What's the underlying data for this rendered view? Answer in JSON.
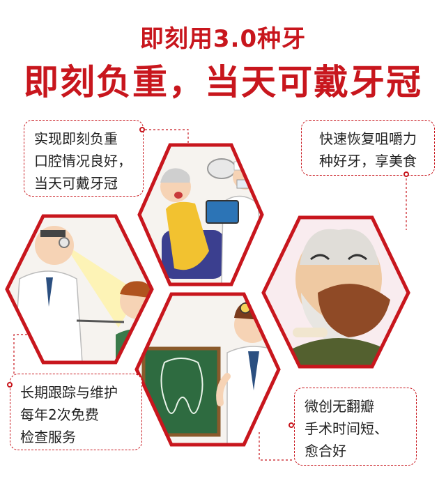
{
  "headline": {
    "line1": "即刻用3.0种牙",
    "line2": "即刻负重，当天可戴牙冠"
  },
  "callouts": {
    "top_left": [
      "实现即刻负重",
      "口腔情况良好，",
      "当天可戴牙冠"
    ],
    "top_right": [
      "快速恢复咀嚼力",
      "种好牙，享美食"
    ],
    "bottom_left": [
      "长期跟踪与维护",
      "每年2次免费",
      "检查服务"
    ],
    "bottom_right": [
      "微创无翻瓣",
      "手术时间短、",
      "愈合好"
    ]
  },
  "colors": {
    "accent": "#c8161d",
    "hex_border": "#c8161d",
    "callout_border": "#c8161d"
  },
  "illustrations": {
    "top_center": "dentist-with-patient-illustration",
    "left": "doctor-examining-boy-illustration",
    "right": "old-man-eating-meat-illustration",
    "bottom_center": "dentist-tooth-chalkboard-illustration"
  }
}
